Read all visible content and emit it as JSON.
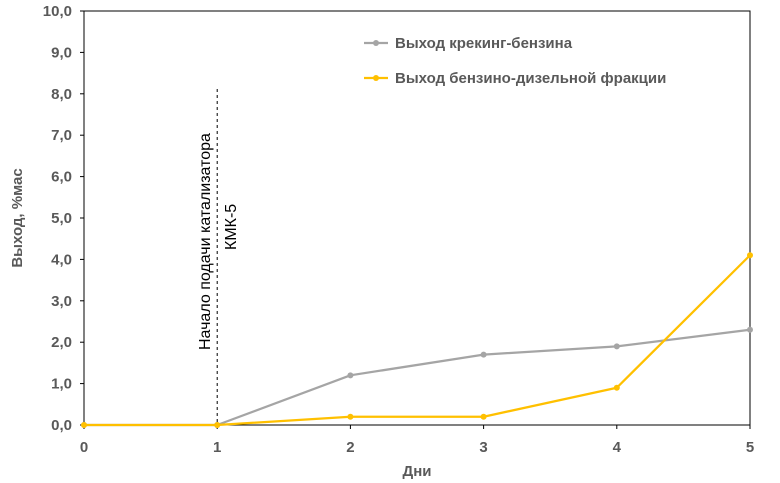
{
  "chart_data": {
    "type": "line",
    "xlabel": "Дни",
    "ylabel": "Выход, %мас",
    "x": [
      0,
      1,
      2,
      3,
      4,
      5
    ],
    "xlim": [
      0,
      5
    ],
    "ylim": [
      0,
      10
    ],
    "x_ticks": [
      "0",
      "1",
      "2",
      "3",
      "4",
      "5"
    ],
    "y_ticks": [
      "0,0",
      "1,0",
      "2,0",
      "3,0",
      "4,0",
      "5,0",
      "6,0",
      "7,0",
      "8,0",
      "9,0",
      "10,0"
    ],
    "grid": false,
    "legend_position": "top-right",
    "series": [
      {
        "name": "Выход крекинг-бензина",
        "color": "#a5a5a5",
        "values": [
          0,
          0,
          1.2,
          1.7,
          1.9,
          2.3
        ]
      },
      {
        "name": "Выход бензино-дизельной фракции",
        "color": "#ffc000",
        "values": [
          0,
          0,
          0.2,
          0.2,
          0.9,
          4.1
        ]
      }
    ],
    "annotation": {
      "x": 1,
      "line1": "Начало подачи катализатора",
      "line2": "КМК-5"
    }
  }
}
